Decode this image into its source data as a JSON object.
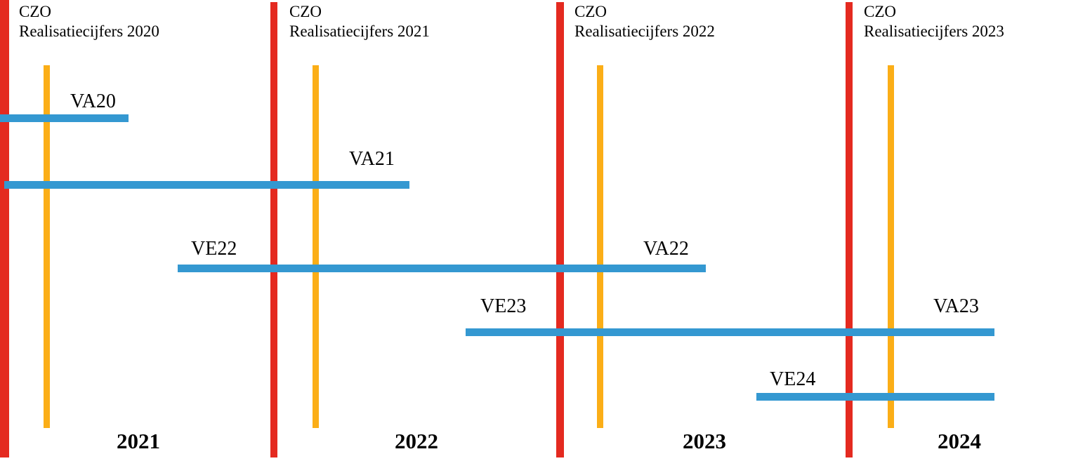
{
  "diagram": {
    "headers": [
      {
        "org": "CZO",
        "subtitle": "Realisatiecijfers 2020"
      },
      {
        "org": "CZO",
        "subtitle": "Realisatiecijfers 2021"
      },
      {
        "org": "CZO",
        "subtitle": "Realisatiecijfers 2022"
      },
      {
        "org": "CZO",
        "subtitle": "Realisatiecijfers 2023"
      }
    ],
    "bar_labels": {
      "va20": "VA20",
      "va21": "VA21",
      "ve22": "VE22",
      "va22": "VA22",
      "ve23": "VE23",
      "va23": "VA23",
      "ve24": "VE24"
    },
    "years": [
      "2021",
      "2022",
      "2023",
      "2024"
    ]
  },
  "colors": {
    "red": "#e42a20",
    "orange": "#fbae17",
    "blue": "#3498d1",
    "text": "#000000",
    "background": "#ffffff"
  },
  "chart_data": {
    "type": "bar",
    "subtype": "gantt-timeline",
    "axis_years": [
      "2021",
      "2022",
      "2023",
      "2024"
    ],
    "red_marker_events": [
      "CZO Realisatiecijfers 2020",
      "CZO Realisatiecijfers 2021",
      "CZO Realisatiecijfers 2022",
      "CZO Realisatiecijfers 2023"
    ],
    "orange_marker_count": 4,
    "bars": [
      {
        "labels": [
          "VA20"
        ],
        "start_year": 2020.98,
        "end_year": 2021.46
      },
      {
        "labels": [
          "VA21"
        ],
        "start_year": 2021.0,
        "end_year": 2022.47
      },
      {
        "labels": [
          "VE22",
          "VA22"
        ],
        "start_year": 2021.64,
        "end_year": 2023.51
      },
      {
        "labels": [
          "VE23",
          "VA23"
        ],
        "start_year": 2022.67,
        "end_year": 2024.51
      },
      {
        "labels": [
          "VE24"
        ],
        "start_year": 2023.68,
        "end_year": 2024.51
      }
    ],
    "legend_position": "none",
    "grid": false
  }
}
